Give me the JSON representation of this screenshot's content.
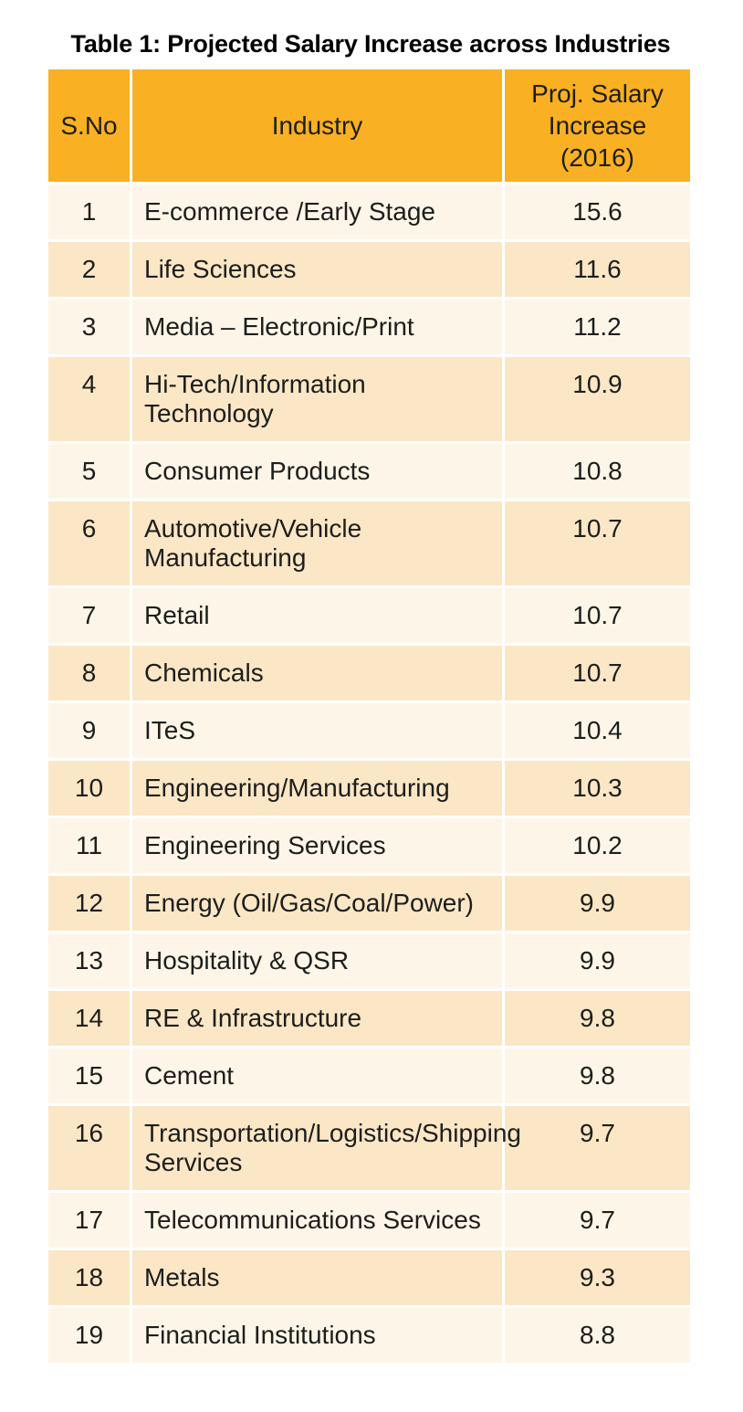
{
  "title": "Table 1: Projected Salary Increase across Industries",
  "colors": {
    "header_bg": "#F9B023",
    "row_light": "#FDF6E8",
    "row_dark": "#FBE7C6",
    "title_text": "#000000",
    "body_text": "#1D1D1B",
    "separator": "#FFFFFF"
  },
  "table": {
    "columns": [
      "S.No",
      "Industry",
      "Proj. Salary Increase (2016)"
    ],
    "rows": [
      {
        "sno": "1",
        "industry": "E-commerce /Early Stage",
        "value": "15.6"
      },
      {
        "sno": "2",
        "industry": "Life Sciences",
        "value": "11.6"
      },
      {
        "sno": "3",
        "industry": "Media – Electronic/Print",
        "value": "11.2"
      },
      {
        "sno": "4",
        "industry": "Hi-Tech/Information Technology",
        "value": "10.9"
      },
      {
        "sno": "5",
        "industry": "Consumer Products",
        "value": "10.8"
      },
      {
        "sno": "6",
        "industry": "Automotive/Vehicle Manufacturing",
        "value": "10.7"
      },
      {
        "sno": "7",
        "industry": "Retail",
        "value": "10.7"
      },
      {
        "sno": "8",
        "industry": "Chemicals",
        "value": "10.7"
      },
      {
        "sno": "9",
        "industry": "ITeS",
        "value": "10.4"
      },
      {
        "sno": "10",
        "industry": "Engineering/Manufacturing",
        "value": "10.3"
      },
      {
        "sno": "11",
        "industry": "Engineering Services",
        "value": "10.2"
      },
      {
        "sno": "12",
        "industry": "Energy (Oil/Gas/Coal/Power)",
        "value": "9.9"
      },
      {
        "sno": "13",
        "industry": "Hospitality & QSR",
        "value": "9.9"
      },
      {
        "sno": "14",
        "industry": "RE & Infrastructure",
        "value": "9.8"
      },
      {
        "sno": "15",
        "industry": "Cement",
        "value": "9.8"
      },
      {
        "sno": "16",
        "industry": "Transportation/Logistics/Shipping Services",
        "value": "9.7"
      },
      {
        "sno": "17",
        "industry": "Telecommunications Services",
        "value": "9.7"
      },
      {
        "sno": "18",
        "industry": "Metals",
        "value": "9.3"
      },
      {
        "sno": "19",
        "industry": "Financial Institutions",
        "value": "8.8"
      }
    ]
  }
}
